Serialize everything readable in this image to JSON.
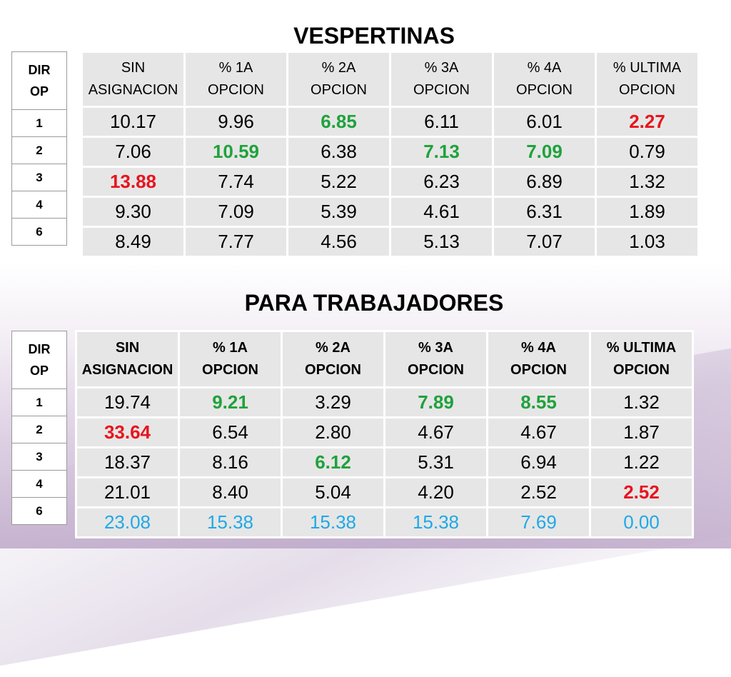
{
  "colors": {
    "red": "#e8141e",
    "green": "#1fa23c",
    "blue": "#1fa9e6",
    "black": "#000000"
  },
  "sections": [
    {
      "title": "VESPERTINAS",
      "dir_header": [
        "DIR",
        "OP"
      ],
      "dirs": [
        "1",
        "2",
        "3",
        "4",
        "6"
      ],
      "headers": [
        [
          "SIN",
          "ASIGNACION"
        ],
        [
          "% 1A",
          "OPCION"
        ],
        [
          "% 2A",
          "OPCION"
        ],
        [
          "% 3A",
          "OPCION"
        ],
        [
          "% 4A",
          "OPCION"
        ],
        [
          "% ULTIMA",
          "OPCION"
        ]
      ],
      "rows": [
        [
          {
            "v": "10.17",
            "c": "black"
          },
          {
            "v": "9.96",
            "c": "black"
          },
          {
            "v": "6.85",
            "c": "green"
          },
          {
            "v": "6.11",
            "c": "black"
          },
          {
            "v": "6.01",
            "c": "black"
          },
          {
            "v": "2.27",
            "c": "red"
          }
        ],
        [
          {
            "v": "7.06",
            "c": "black"
          },
          {
            "v": "10.59",
            "c": "green"
          },
          {
            "v": "6.38",
            "c": "black"
          },
          {
            "v": "7.13",
            "c": "green"
          },
          {
            "v": "7.09",
            "c": "green"
          },
          {
            "v": "0.79",
            "c": "black"
          }
        ],
        [
          {
            "v": "13.88",
            "c": "red"
          },
          {
            "v": "7.74",
            "c": "black"
          },
          {
            "v": "5.22",
            "c": "black"
          },
          {
            "v": "6.23",
            "c": "black"
          },
          {
            "v": "6.89",
            "c": "black"
          },
          {
            "v": "1.32",
            "c": "black"
          }
        ],
        [
          {
            "v": "9.30",
            "c": "black"
          },
          {
            "v": "7.09",
            "c": "black"
          },
          {
            "v": "5.39",
            "c": "black"
          },
          {
            "v": "4.61",
            "c": "black"
          },
          {
            "v": "6.31",
            "c": "black"
          },
          {
            "v": "1.89",
            "c": "black"
          }
        ],
        [
          {
            "v": "8.49",
            "c": "black"
          },
          {
            "v": "7.77",
            "c": "black"
          },
          {
            "v": "4.56",
            "c": "black"
          },
          {
            "v": "5.13",
            "c": "black"
          },
          {
            "v": "7.07",
            "c": "black"
          },
          {
            "v": "1.03",
            "c": "black"
          }
        ]
      ]
    },
    {
      "title": "PARA TRABAJADORES",
      "dir_header": [
        "DIR",
        "OP"
      ],
      "dirs": [
        "1",
        "2",
        "3",
        "4",
        "6"
      ],
      "headers": [
        [
          "SIN",
          "ASIGNACION"
        ],
        [
          "% 1A",
          "OPCION"
        ],
        [
          "% 2A",
          "OPCION"
        ],
        [
          "% 3A",
          "OPCION"
        ],
        [
          "% 4A",
          "OPCION"
        ],
        [
          "% ULTIMA",
          "OPCION"
        ]
      ],
      "rows": [
        [
          {
            "v": "19.74",
            "c": "black"
          },
          {
            "v": "9.21",
            "c": "green"
          },
          {
            "v": "3.29",
            "c": "black"
          },
          {
            "v": "7.89",
            "c": "green"
          },
          {
            "v": "8.55",
            "c": "green"
          },
          {
            "v": "1.32",
            "c": "black"
          }
        ],
        [
          {
            "v": "33.64",
            "c": "red"
          },
          {
            "v": "6.54",
            "c": "black"
          },
          {
            "v": "2.80",
            "c": "black"
          },
          {
            "v": "4.67",
            "c": "black"
          },
          {
            "v": "4.67",
            "c": "black"
          },
          {
            "v": "1.87",
            "c": "black"
          }
        ],
        [
          {
            "v": "18.37",
            "c": "black"
          },
          {
            "v": "8.16",
            "c": "black"
          },
          {
            "v": "6.12",
            "c": "green"
          },
          {
            "v": "5.31",
            "c": "black"
          },
          {
            "v": "6.94",
            "c": "black"
          },
          {
            "v": "1.22",
            "c": "black"
          }
        ],
        [
          {
            "v": "21.01",
            "c": "black"
          },
          {
            "v": "8.40",
            "c": "black"
          },
          {
            "v": "5.04",
            "c": "black"
          },
          {
            "v": "4.20",
            "c": "black"
          },
          {
            "v": "2.52",
            "c": "black"
          },
          {
            "v": "2.52",
            "c": "red"
          }
        ],
        [
          {
            "v": "23.08",
            "c": "blue"
          },
          {
            "v": "15.38",
            "c": "blue"
          },
          {
            "v": "15.38",
            "c": "blue"
          },
          {
            "v": "15.38",
            "c": "blue"
          },
          {
            "v": "7.69",
            "c": "blue"
          },
          {
            "v": "0.00",
            "c": "blue"
          }
        ]
      ]
    }
  ]
}
